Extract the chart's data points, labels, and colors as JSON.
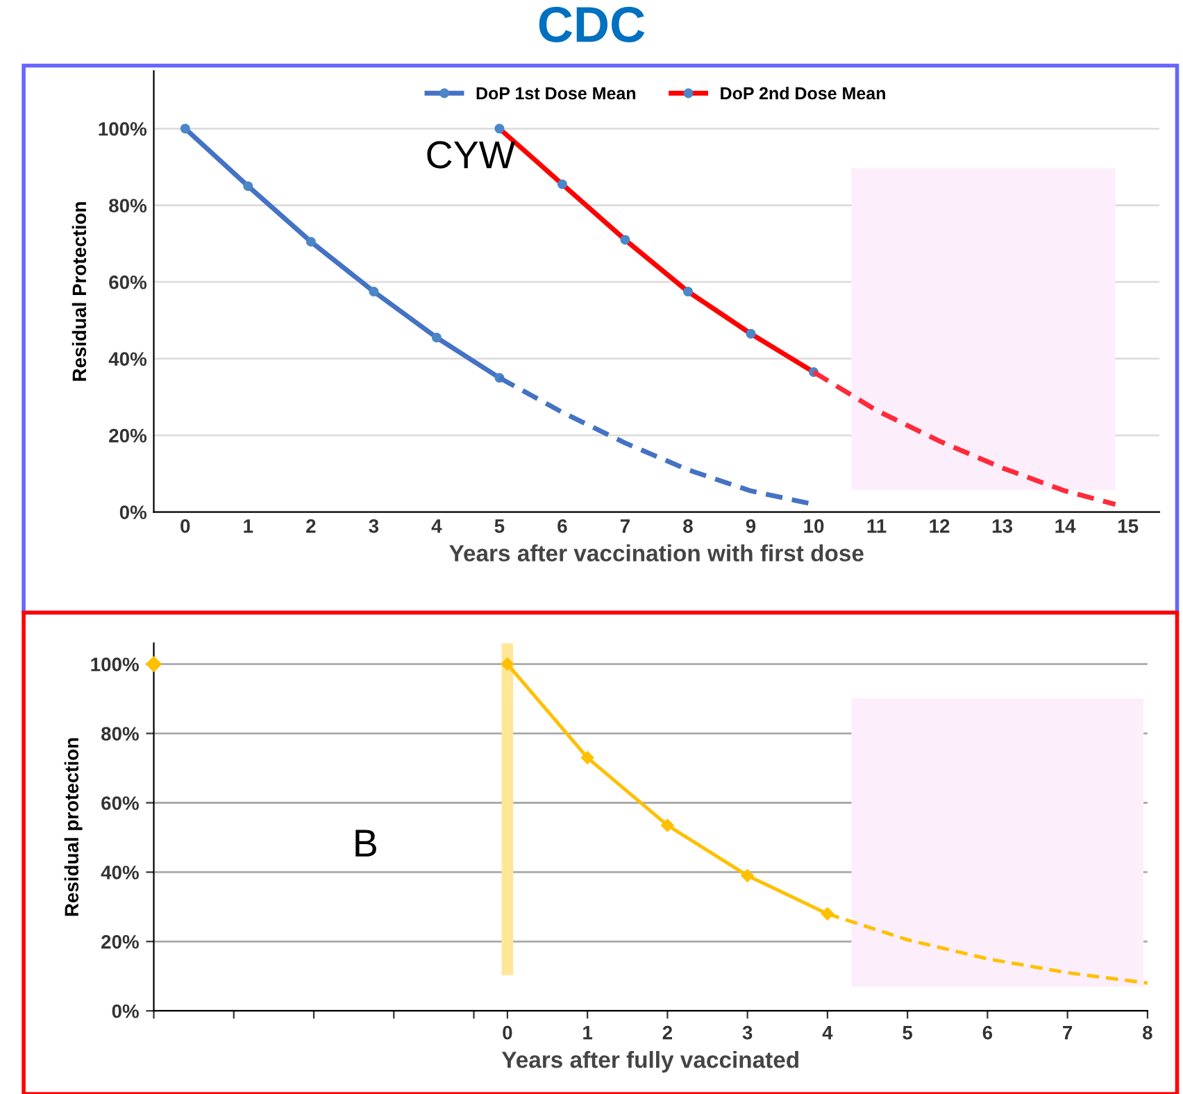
{
  "chart_data": [
    {
      "type": "line",
      "title": "CDC",
      "xlabel": "Years after vaccination with first dose",
      "ylabel": "Residual Protection",
      "annotations": [
        "CYW"
      ],
      "xlim": [
        -0.5,
        15.5
      ],
      "xticks": [
        0,
        1,
        2,
        3,
        4,
        5,
        6,
        7,
        8,
        9,
        10,
        11,
        12,
        13,
        14,
        15
      ],
      "ylim": [
        0,
        115
      ],
      "yticks": [
        {
          "value": 0,
          "label": "0%"
        },
        {
          "value": 20,
          "label": "20%"
        },
        {
          "value": 40,
          "label": "40%"
        },
        {
          "value": 60,
          "label": "60%"
        },
        {
          "value": 80,
          "label": "80%"
        },
        {
          "value": 100,
          "label": "100%"
        }
      ],
      "grid": "y",
      "legend": "top",
      "series": [
        {
          "name": "DoP 1st Dose Mean",
          "color": "#4472c4",
          "x": [
            0,
            1,
            2,
            3,
            4,
            5
          ],
          "values": [
            100,
            85,
            70.5,
            57.5,
            45.5,
            35
          ],
          "marker": "circle",
          "line_style": "solid"
        },
        {
          "color": "#4472c4",
          "x": [
            5,
            6,
            7,
            8,
            9,
            10
          ],
          "values": [
            35,
            26,
            18,
            11,
            5.5,
            2
          ],
          "marker": "none",
          "line_style": "dashed"
        },
        {
          "name": "DoP 2nd Dose Mean",
          "color": "#ff0000",
          "x": [
            5,
            6,
            7,
            8,
            9,
            10
          ],
          "values": [
            100,
            85.5,
            71,
            57.5,
            46.5,
            36.5
          ],
          "marker": "circle",
          "line_style": "solid"
        },
        {
          "color": "#ff2a3a",
          "x": [
            10,
            11,
            12,
            13,
            14,
            14.8
          ],
          "values": [
            36.5,
            26.5,
            18.5,
            11.5,
            5.5,
            2
          ],
          "marker": "none",
          "line_style": "dashed"
        }
      ],
      "bands": [
        {
          "axis": "x",
          "from": 10.6,
          "to": 14.8,
          "color": "#fdeefc"
        }
      ]
    },
    {
      "type": "line",
      "xlabel": "Years after fully vaccinated",
      "ylabel": "Residual protection",
      "annotations": [
        "B"
      ],
      "xlim": [
        -4.42,
        8
      ],
      "xticks": [
        {
          "value": -4.42,
          "label": null
        },
        {
          "value": -3.42,
          "label": null
        },
        {
          "value": -2.42,
          "label": null
        },
        {
          "value": -1.42,
          "label": null
        },
        {
          "value": -0.42,
          "label": null
        },
        0,
        1,
        2,
        3,
        4,
        5,
        6,
        7,
        8
      ],
      "ylim": [
        0,
        106
      ],
      "yticks": [
        {
          "value": 0,
          "label": "0%"
        },
        {
          "value": 20,
          "label": "20%"
        },
        {
          "value": 40,
          "label": "40%"
        },
        {
          "value": 60,
          "label": "60%"
        },
        {
          "value": 80,
          "label": "80%"
        },
        {
          "value": 100,
          "label": "100%"
        }
      ],
      "grid": "y",
      "series": [
        {
          "color": "#ffc000",
          "x": [
            0,
            1,
            2,
            3,
            4
          ],
          "values": [
            100,
            73,
            53.5,
            39,
            28
          ],
          "marker": "diamond",
          "line_style": "solid"
        },
        {
          "color": "#ffc000",
          "x": [
            4,
            5,
            6,
            7,
            8
          ],
          "values": [
            28,
            20.5,
            15,
            11,
            8
          ],
          "marker": "none",
          "line_style": "dashed"
        },
        {
          "type": "scatter",
          "color": "#ffc000",
          "x": [
            -4.42
          ],
          "values": [
            100
          ],
          "marker": "diamond"
        }
      ],
      "ref_lines": [
        {
          "axis": "x",
          "value": 0,
          "color": "#ffe699"
        }
      ],
      "bands": [
        {
          "axis": "x",
          "from": 4.3,
          "to": 7.95,
          "color": "#fdeefc"
        }
      ]
    }
  ]
}
